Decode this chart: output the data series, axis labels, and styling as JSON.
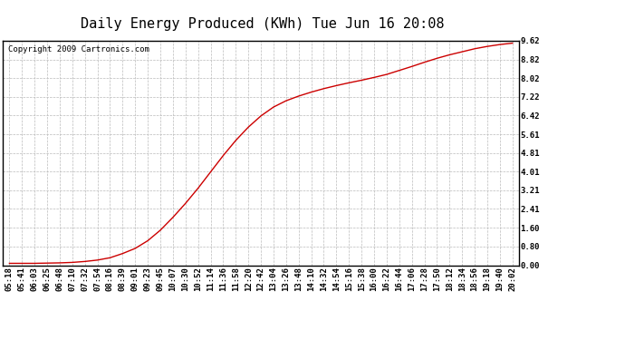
{
  "title": "Daily Energy Produced (KWh) Tue Jun 16 20:08",
  "copyright_text": "Copyright 2009 Cartronics.com",
  "line_color": "#cc0000",
  "background_color": "#ffffff",
  "grid_color": "#bbbbbb",
  "yticks": [
    0.0,
    0.8,
    1.6,
    2.41,
    3.21,
    4.01,
    4.81,
    5.61,
    6.42,
    7.22,
    8.02,
    8.82,
    9.62
  ],
  "ylim": [
    0.0,
    9.62
  ],
  "xtick_labels": [
    "05:18",
    "05:41",
    "06:03",
    "06:25",
    "06:48",
    "07:10",
    "07:32",
    "07:54",
    "08:16",
    "08:39",
    "09:01",
    "09:23",
    "09:45",
    "10:07",
    "10:30",
    "10:52",
    "11:14",
    "11:36",
    "11:58",
    "12:20",
    "12:42",
    "13:04",
    "13:26",
    "13:48",
    "14:10",
    "14:32",
    "14:54",
    "15:16",
    "15:38",
    "16:00",
    "16:22",
    "16:44",
    "17:06",
    "17:28",
    "17:50",
    "18:12",
    "18:34",
    "18:56",
    "19:18",
    "19:40",
    "20:02"
  ],
  "y_data": [
    0.08,
    0.08,
    0.08,
    0.09,
    0.1,
    0.12,
    0.16,
    0.22,
    0.32,
    0.5,
    0.72,
    1.05,
    1.5,
    2.05,
    2.65,
    3.3,
    4.0,
    4.7,
    5.35,
    5.92,
    6.4,
    6.78,
    7.05,
    7.25,
    7.42,
    7.57,
    7.7,
    7.82,
    7.93,
    8.05,
    8.18,
    8.35,
    8.52,
    8.7,
    8.87,
    9.02,
    9.15,
    9.28,
    9.38,
    9.46,
    9.52
  ],
  "figsize_inches": [
    6.9,
    3.75
  ],
  "dpi": 100,
  "title_fontsize": 11,
  "tick_fontsize": 6.5,
  "copyright_fontsize": 6.5
}
